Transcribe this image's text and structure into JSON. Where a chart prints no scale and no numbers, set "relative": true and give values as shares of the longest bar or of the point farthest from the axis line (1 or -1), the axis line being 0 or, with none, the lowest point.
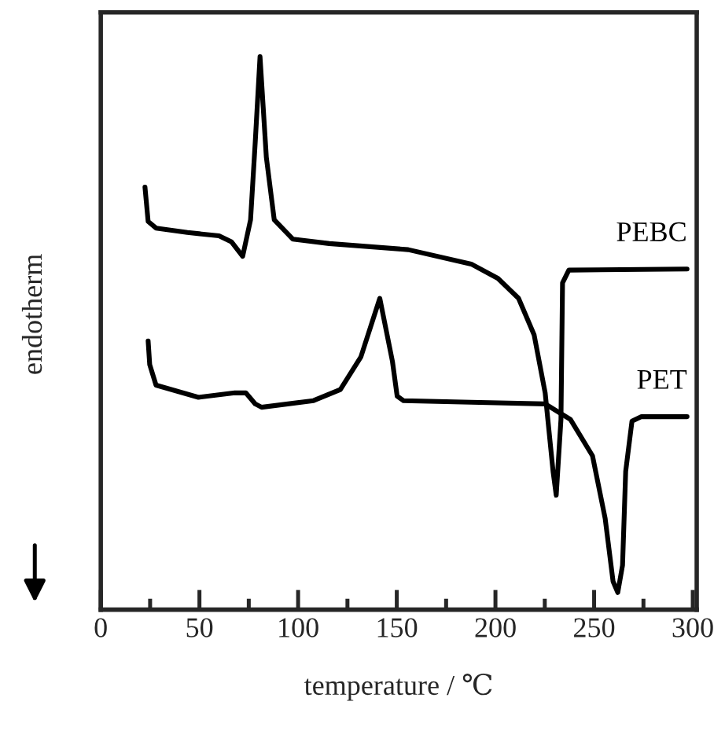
{
  "chart_data": {
    "type": "line",
    "relative": true,
    "xlabel": "temperature / ℃",
    "ylabel": "endotherm",
    "xlim": [
      0,
      302
    ],
    "xticks": [
      0,
      {
        "value": 25,
        "label": null
      },
      50,
      {
        "value": 75,
        "label": null
      },
      100,
      {
        "value": 125,
        "label": null
      },
      150,
      {
        "value": 175,
        "label": null
      },
      200,
      {
        "value": 225,
        "label": null
      },
      250,
      {
        "value": 275,
        "label": null
      },
      300
    ],
    "grid": false,
    "legend": false,
    "marker": "none",
    "line_style": "solid",
    "series": [
      {
        "name": "PEBC",
        "color": "#000000",
        "x": [
          22.4,
          24.0,
          28.0,
          43.9,
          59.9,
          66.3,
          71.9,
          75.9,
          78.3,
          80.7,
          83.9,
          87.9,
          97.4,
          115.8,
          155.8,
          187.7,
          201.3,
          211.7,
          219.6,
          225.2,
          229.2,
          230.8,
          233.2,
          234.0,
          237.2,
          297.1
        ],
        "values": [
          0.764,
          0.702,
          0.69,
          0.682,
          0.676,
          0.665,
          0.639,
          0.705,
          0.847,
          1.0,
          0.818,
          0.705,
          0.67,
          0.662,
          0.651,
          0.625,
          0.599,
          0.563,
          0.497,
          0.392,
          0.25,
          0.207,
          0.344,
          0.591,
          0.614,
          0.616
        ]
      },
      {
        "name": "PET",
        "color": "#000000",
        "x": [
          24.0,
          24.8,
          28.0,
          49.5,
          67.9,
          73.5,
          78.3,
          81.5,
          107.8,
          121.4,
          131.8,
          141.4,
          147.8,
          150.2,
          153.4,
          187.7,
          225.2,
          238.0,
          249.2,
          255.6,
          259.6,
          262.0,
          264.4,
          266.0,
          269.2,
          274.0,
          297.1
        ],
        "values": [
          0.486,
          0.443,
          0.406,
          0.384,
          0.392,
          0.392,
          0.372,
          0.366,
          0.378,
          0.398,
          0.457,
          0.563,
          0.449,
          0.386,
          0.378,
          0.375,
          0.372,
          0.344,
          0.278,
          0.165,
          0.051,
          0.031,
          0.08,
          0.25,
          0.341,
          0.349,
          0.349
        ]
      }
    ]
  }
}
